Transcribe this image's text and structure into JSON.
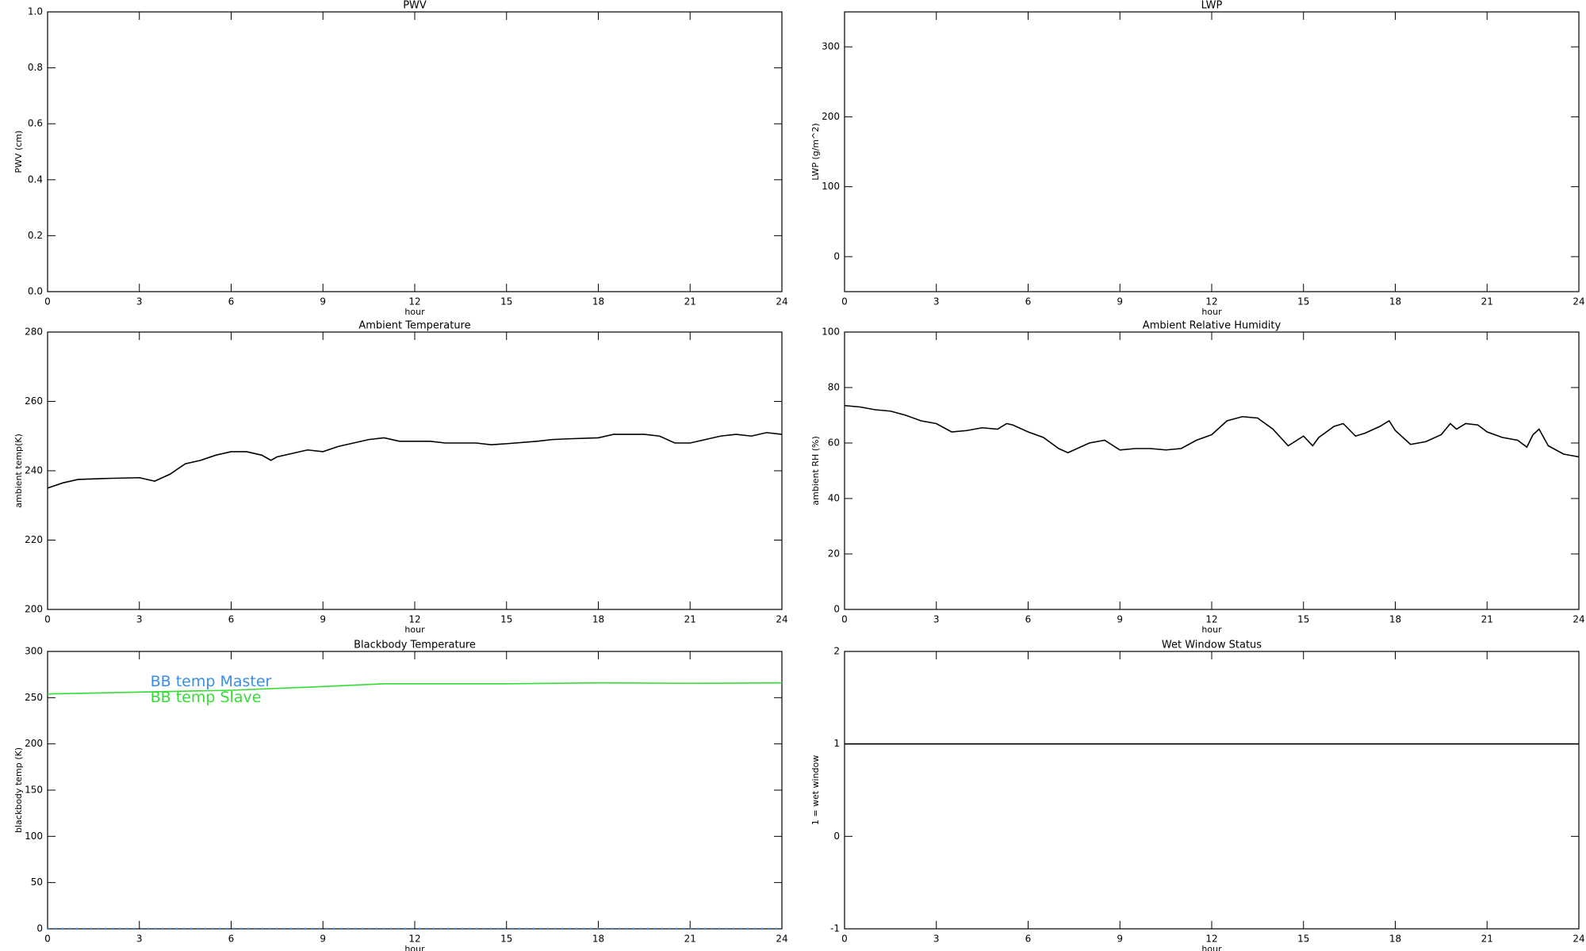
{
  "chart_data": [
    {
      "type": "line",
      "title": "PWV",
      "xlabel": "hour",
      "ylabel": "PWV (cm)",
      "xlim": [
        0,
        24
      ],
      "xticks": [
        0,
        3,
        6,
        9,
        12,
        15,
        18,
        21,
        24
      ],
      "ylim": [
        0,
        1
      ],
      "yticks": [
        {
          "value": 0,
          "label": "0.0"
        },
        0.2,
        0.4,
        0.6,
        0.8,
        {
          "value": 1,
          "label": "1.0"
        }
      ],
      "x": [],
      "series": []
    },
    {
      "type": "line",
      "title": "LWP",
      "xlabel": "hour",
      "ylabel": "LWP (g/m^2)",
      "xlim": [
        0,
        24
      ],
      "xticks": [
        0,
        3,
        6,
        9,
        12,
        15,
        18,
        21,
        24
      ],
      "ylim": [
        -50,
        350
      ],
      "yticks": [
        0,
        100,
        200,
        300
      ],
      "x": [],
      "series": []
    },
    {
      "type": "line",
      "title": "Ambient Temperature",
      "xlabel": "hour",
      "ylabel": "ambient temp(K)",
      "xlim": [
        0,
        24
      ],
      "xticks": [
        0,
        3,
        6,
        9,
        12,
        15,
        18,
        21,
        24
      ],
      "ylim": [
        200,
        280
      ],
      "yticks": [
        200,
        220,
        240,
        260,
        280
      ],
      "x": [
        0,
        0.5,
        1,
        2,
        3,
        3.5,
        4,
        4.5,
        5,
        5.5,
        6,
        6.5,
        7,
        7.3,
        7.5,
        8,
        8.5,
        9,
        9.5,
        10,
        10.5,
        11,
        11.5,
        12,
        12.5,
        13,
        14,
        14.5,
        15,
        16,
        16.5,
        17,
        18,
        18.5,
        19,
        19.5,
        20,
        20.5,
        21,
        21.5,
        22,
        22.5,
        23,
        23.5,
        24
      ],
      "series": [
        {
          "color": "#000000",
          "values": [
            235,
            236.5,
            237.5,
            237.8,
            238,
            237,
            239,
            242,
            243,
            244.5,
            245.5,
            245.5,
            244.5,
            243,
            244,
            245,
            246,
            245.5,
            247,
            248,
            249,
            249.5,
            248.5,
            248.5,
            248.5,
            248,
            248,
            247.5,
            247.8,
            248.5,
            249,
            249.2,
            249.5,
            250.5,
            250.5,
            250.5,
            250,
            248,
            248,
            249,
            250,
            250.5,
            250,
            251,
            250.5
          ]
        }
      ]
    },
    {
      "type": "line",
      "title": "Ambient Relative Humidity",
      "xlabel": "hour",
      "ylabel": "ambient RH (%)",
      "xlim": [
        0,
        24
      ],
      "xticks": [
        0,
        3,
        6,
        9,
        12,
        15,
        18,
        21,
        24
      ],
      "ylim": [
        0,
        100
      ],
      "yticks": [
        0,
        20,
        40,
        60,
        80,
        100
      ],
      "x": [
        0,
        0.5,
        1,
        1.5,
        2,
        2.5,
        3,
        3.5,
        4,
        4.5,
        5,
        5.3,
        5.5,
        6,
        6.5,
        7,
        7.3,
        7.5,
        8,
        8.5,
        9,
        9.5,
        10,
        10.5,
        11,
        11.5,
        12,
        12.5,
        13,
        13.5,
        14,
        14.5,
        15,
        15.3,
        15.5,
        16,
        16.3,
        16.7,
        17,
        17.5,
        17.8,
        18,
        18.5,
        19,
        19.5,
        19.8,
        20,
        20.3,
        20.7,
        21,
        21.5,
        22,
        22.3,
        22.5,
        22.7,
        23,
        23.5,
        24
      ],
      "series": [
        {
          "color": "#000000",
          "values": [
            73.5,
            73,
            72,
            71.5,
            70,
            68,
            67,
            64,
            64.5,
            65.5,
            65,
            67,
            66.5,
            64,
            62,
            58,
            56.5,
            57.5,
            60,
            61,
            57.5,
            58,
            58,
            57.5,
            58,
            61,
            63,
            68,
            69.5,
            69,
            65,
            59,
            62.5,
            59,
            62,
            66,
            67,
            62.5,
            63.5,
            66,
            68,
            64.5,
            59.5,
            60.5,
            63,
            67,
            65,
            67,
            66.5,
            64,
            62,
            61,
            58.5,
            63,
            65,
            59,
            56,
            55
          ]
        }
      ]
    },
    {
      "type": "line",
      "title": "Blackbody Temperature",
      "xlabel": "hour",
      "ylabel": "blackbody temp (K)",
      "xlim": [
        0,
        24
      ],
      "xticks": [
        0,
        3,
        6,
        9,
        12,
        15,
        18,
        21,
        24
      ],
      "ylim": [
        0,
        300
      ],
      "yticks": [
        0,
        50,
        100,
        150,
        200,
        250,
        300
      ],
      "legend": "upper left",
      "x": [
        0,
        3,
        6,
        9,
        11,
        15,
        18,
        21,
        24
      ],
      "series": [
        {
          "name": "BB temp Master",
          "color": "#3a8ee6",
          "line_style": "dotted",
          "values": [
            0,
            0,
            0,
            0,
            0,
            0,
            0,
            0,
            0
          ]
        },
        {
          "name": "BB temp Slave",
          "color": "#33dd33",
          "values": [
            254,
            256,
            258,
            262,
            265,
            265,
            266,
            265.5,
            266
          ]
        }
      ]
    },
    {
      "type": "line",
      "title": "Wet Window Status",
      "xlabel": "hour",
      "ylabel": "1 = wet window",
      "xlim": [
        0,
        24
      ],
      "xticks": [
        0,
        3,
        6,
        9,
        12,
        15,
        18,
        21,
        24
      ],
      "ylim": [
        -1,
        2
      ],
      "yticks": [
        -1,
        0,
        1,
        2
      ],
      "x": [
        0,
        24
      ],
      "series": [
        {
          "color": "#000000",
          "values": [
            1,
            1
          ]
        }
      ]
    }
  ]
}
